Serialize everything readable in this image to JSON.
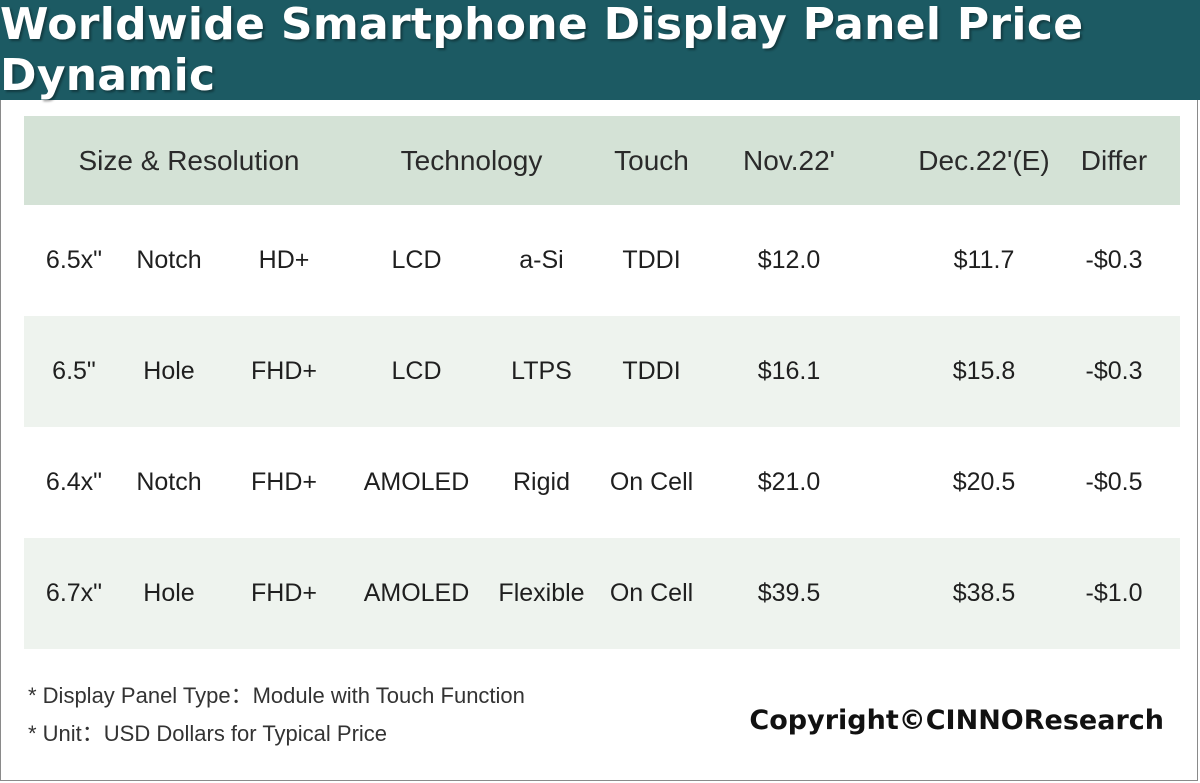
{
  "title": "Worldwide Smartphone Display Panel Price Dynamic",
  "chart_data": {
    "type": "table",
    "columns": [
      "Size & Resolution",
      "Technology",
      "Touch",
      "Nov.22'",
      "Dec.22'(E)",
      "Differ"
    ],
    "rows": [
      {
        "size": "6.5x\"",
        "notch": "Notch",
        "res": "HD+",
        "tech": "LCD",
        "sub": "a-Si",
        "touch": "TDDI",
        "nov": "$12.0",
        "dec": "$11.7",
        "diff": "-$0.3"
      },
      {
        "size": "6.5\"",
        "notch": "Hole",
        "res": "FHD+",
        "tech": "LCD",
        "sub": "LTPS",
        "touch": "TDDI",
        "nov": "$16.1",
        "dec": "$15.8",
        "diff": "-$0.3"
      },
      {
        "size": "6.4x\"",
        "notch": "Notch",
        "res": "FHD+",
        "tech": "AMOLED",
        "sub": "Rigid",
        "touch": "On Cell",
        "nov": "$21.0",
        "dec": "$20.5",
        "diff": "-$0.5"
      },
      {
        "size": "6.7x\"",
        "notch": "Hole",
        "res": "FHD+",
        "tech": "AMOLED",
        "sub": "Flexible",
        "touch": "On Cell",
        "nov": "$39.5",
        "dec": "$38.5",
        "diff": "-$1.0"
      }
    ]
  },
  "footnotes": [
    "* Display Panel Type：Module with Touch Function",
    "* Unit：USD Dollars for Typical Price"
  ],
  "copyright": "Copyright©CINNOResearch",
  "colors": {
    "title_bar": "#1c5a63",
    "header_row": "#d4e2d6",
    "alt_row": "#eef3ee"
  }
}
